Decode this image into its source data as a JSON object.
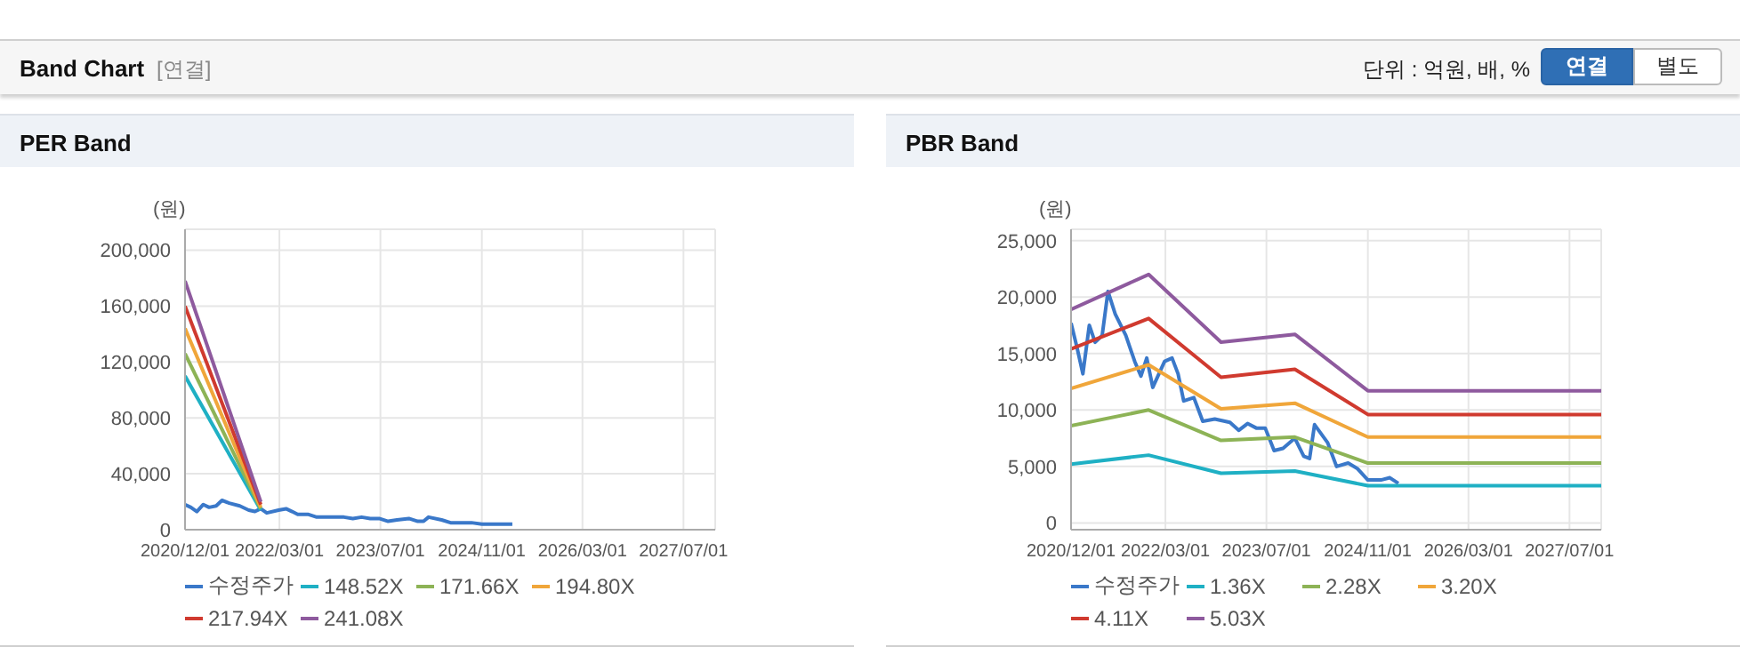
{
  "chart_data": [
    {
      "type": "other",
      "title": "Band Chart",
      "annotations": [
        "[연결]",
        "단위 : 억원, 배, %",
        "연결",
        "별도"
      ]
    },
    {
      "type": "line",
      "title": "PER Band",
      "ylabel": "(원)",
      "xlim": [
        "2020-12-01",
        "2027-12-01"
      ],
      "xticks": [
        {
          "value": "2020-12-01",
          "label": "2020/12/01"
        },
        {
          "value": "2022-03-01",
          "label": "2022/03/01"
        },
        {
          "value": "2023-07-01",
          "label": "2023/07/01"
        },
        {
          "value": "2024-11-01",
          "label": "2024/11/01"
        },
        {
          "value": "2026-03-01",
          "label": "2026/03/01"
        },
        {
          "value": "2027-07-01",
          "label": "2027/07/01"
        }
      ],
      "ylim": [
        0,
        215000
      ],
      "yticks": [
        0,
        {
          "value": 40000,
          "label": "40,000"
        },
        {
          "value": 80000,
          "label": "80,000"
        },
        {
          "value": 120000,
          "label": "120,000"
        },
        {
          "value": 160000,
          "label": "160,000"
        },
        {
          "value": 200000,
          "label": "200,000"
        }
      ],
      "grid": true,
      "legend": "bottom",
      "series": [
        {
          "name": "수정주가",
          "color": "#3a78c9",
          "x": [
            "2020-12-01",
            "2020-12-29",
            "2021-01-27",
            "2021-02-27",
            "2021-03-27",
            "2021-04-30",
            "2021-05-28",
            "2021-07-02",
            "2021-08-22",
            "2021-10-04",
            "2021-11-03",
            "2021-12-01",
            "2021-12-30",
            "2022-02-25",
            "2022-04-02",
            "2022-05-01",
            "2022-05-28",
            "2022-07-16",
            "2022-08-28",
            "2022-10-25",
            "2023-01-06",
            "2023-02-18",
            "2023-04-01",
            "2023-05-13",
            "2023-06-25",
            "2023-08-07",
            "2023-09-19",
            "2023-11-15",
            "2023-12-28",
            "2024-01-25",
            "2024-02-18",
            "2024-04-21",
            "2024-06-03",
            "2024-07-29",
            "2024-09-12",
            "2024-11-01",
            "2025-01-03",
            "2025-02-15",
            "2025-03-28"
          ],
          "values": [
            18000,
            16000,
            13000,
            18000,
            16000,
            17000,
            21000,
            19000,
            17000,
            14000,
            13000,
            15000,
            12000,
            14000,
            15000,
            13000,
            11000,
            11000,
            9000,
            9000,
            9000,
            8000,
            9000,
            8000,
            8000,
            6000,
            7000,
            8000,
            6000,
            6000,
            9000,
            7000,
            5000,
            5000,
            5000,
            4000,
            4000,
            4000,
            4000
          ]
        },
        {
          "name": "148.52X",
          "color": "#1fb0c4",
          "x": [
            "2020-12-01",
            "2021-12-01"
          ],
          "values": [
            110000,
            14000
          ]
        },
        {
          "name": "171.66X",
          "color": "#8db356",
          "x": [
            "2020-12-01",
            "2021-12-01"
          ],
          "values": [
            126000,
            15000
          ]
        },
        {
          "name": "194.80X",
          "color": "#f0a63a",
          "x": [
            "2020-12-01",
            "2021-12-01"
          ],
          "values": [
            144000,
            16000
          ]
        },
        {
          "name": "217.94X",
          "color": "#d03a2f",
          "x": [
            "2020-12-01",
            "2021-12-01"
          ],
          "values": [
            160000,
            18000
          ]
        },
        {
          "name": "241.08X",
          "color": "#8e5a9e",
          "x": [
            "2020-12-01",
            "2021-12-01"
          ],
          "values": [
            178000,
            20000
          ]
        }
      ]
    },
    {
      "type": "line",
      "title": "PBR Band",
      "ylabel": "(원)",
      "xlim": [
        "2020-12-01",
        "2027-12-01"
      ],
      "xticks": [
        {
          "value": "2020-12-01",
          "label": "2020/12/01"
        },
        {
          "value": "2022-03-01",
          "label": "2022/03/01"
        },
        {
          "value": "2023-07-01",
          "label": "2023/07/01"
        },
        {
          "value": "2024-11-01",
          "label": "2024/11/01"
        },
        {
          "value": "2026-03-01",
          "label": "2026/03/01"
        },
        {
          "value": "2027-07-01",
          "label": "2027/07/01"
        }
      ],
      "ylim": [
        -600,
        26000
      ],
      "yticks": [
        0,
        {
          "value": 5000,
          "label": "5,000"
        },
        {
          "value": 10000,
          "label": "10,000"
        },
        {
          "value": 15000,
          "label": "15,000"
        },
        {
          "value": 20000,
          "label": "20,000"
        },
        {
          "value": 25000,
          "label": "25,000"
        }
      ],
      "grid": true,
      "legend": "bottom",
      "series": [
        {
          "name": "수정주가",
          "color": "#3a78c9",
          "x": [
            "2020-12-01",
            "2020-12-29",
            "2021-01-27",
            "2021-02-27",
            "2021-03-27",
            "2021-04-30",
            "2021-05-28",
            "2021-07-02",
            "2021-08-22",
            "2021-10-04",
            "2021-11-03",
            "2021-12-01",
            "2021-12-30",
            "2022-02-25",
            "2022-04-02",
            "2022-05-01",
            "2022-05-28",
            "2022-07-16",
            "2022-08-28",
            "2022-10-25",
            "2023-01-06",
            "2023-02-18",
            "2023-04-01",
            "2023-05-13",
            "2023-06-25",
            "2023-08-07",
            "2023-09-19",
            "2023-11-15",
            "2023-12-28",
            "2024-01-25",
            "2024-02-18",
            "2024-04-21",
            "2024-06-03",
            "2024-07-29",
            "2024-09-12",
            "2024-11-01",
            "2025-01-03",
            "2025-02-15",
            "2025-03-28"
          ],
          "values": [
            17700,
            15600,
            13200,
            17500,
            16000,
            16600,
            20500,
            18500,
            16600,
            14300,
            13000,
            14600,
            12000,
            14300,
            14600,
            13200,
            10800,
            11100,
            9000,
            9200,
            8900,
            8200,
            8800,
            8400,
            8400,
            6400,
            6600,
            7500,
            5900,
            5700,
            8700,
            7100,
            5000,
            5300,
            4800,
            3800,
            3800,
            4000,
            3500
          ]
        },
        {
          "name": "1.36X",
          "color": "#1fb0c4",
          "x": [
            "2020-12-01",
            "2021-12-10",
            "2022-11-24",
            "2023-11-15",
            "2024-11-01",
            "2027-12-01"
          ],
          "values": [
            5200,
            6000,
            4400,
            4600,
            3300,
            3300
          ]
        },
        {
          "name": "2.28X",
          "color": "#8db356",
          "x": [
            "2020-12-01",
            "2021-12-10",
            "2022-11-24",
            "2023-11-15",
            "2024-11-01",
            "2027-12-01"
          ],
          "values": [
            8600,
            10000,
            7300,
            7600,
            5300,
            5300
          ]
        },
        {
          "name": "3.20X",
          "color": "#f0a63a",
          "x": [
            "2020-12-01",
            "2021-12-10",
            "2022-11-24",
            "2023-11-15",
            "2024-11-01",
            "2027-12-01"
          ],
          "values": [
            11900,
            14000,
            10100,
            10600,
            7600,
            7600
          ]
        },
        {
          "name": "4.11X",
          "color": "#d03a2f",
          "x": [
            "2020-12-01",
            "2021-12-10",
            "2022-11-24",
            "2023-11-15",
            "2024-11-01",
            "2027-12-01"
          ],
          "values": [
            15400,
            18100,
            12900,
            13600,
            9600,
            9600
          ]
        },
        {
          "name": "5.03X",
          "color": "#8e5a9e",
          "x": [
            "2020-12-01",
            "2021-12-10",
            "2022-11-24",
            "2023-11-15",
            "2024-11-01",
            "2027-12-01"
          ],
          "values": [
            18900,
            22000,
            16000,
            16700,
            11700,
            11700
          ]
        }
      ]
    }
  ]
}
